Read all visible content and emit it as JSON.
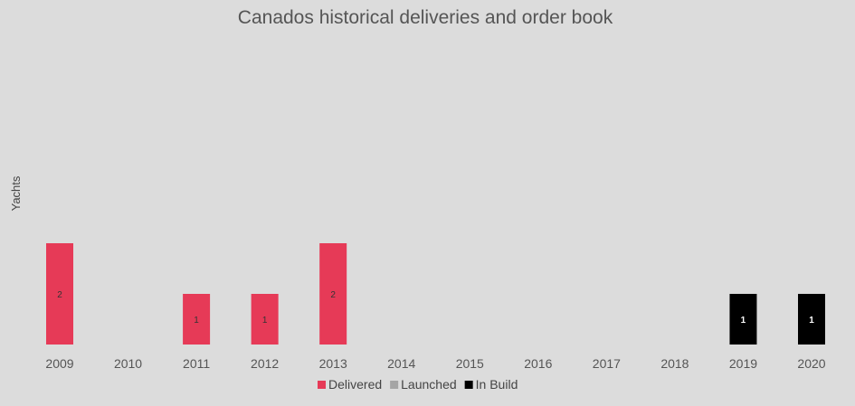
{
  "chart_data": {
    "type": "bar",
    "stacked": true,
    "title": "Canados historical deliveries and order book",
    "xlabel": "",
    "ylabel": "Yachts",
    "categories": [
      "2009",
      "2010",
      "2011",
      "2012",
      "2013",
      "2014",
      "2015",
      "2016",
      "2017",
      "2018",
      "2019",
      "2020"
    ],
    "series": [
      {
        "name": "Delivered",
        "color": "#e63a57",
        "label_color": "#333333",
        "values": [
          2,
          0,
          1,
          1,
          2,
          0,
          0,
          0,
          0,
          0,
          0,
          0
        ]
      },
      {
        "name": "Launched",
        "color": "#a5a5a5",
        "label_color": "#333333",
        "values": [
          0,
          0,
          0,
          0,
          0,
          0,
          0,
          0,
          0,
          0,
          0,
          0
        ]
      },
      {
        "name": "In Build",
        "color": "#000000",
        "label_color": "#ffffff",
        "values": [
          0,
          0,
          0,
          0,
          0,
          0,
          0,
          0,
          0,
          0,
          1,
          1
        ]
      }
    ],
    "ylim": [
      0,
      6
    ],
    "grid": false,
    "legend_position": "bottom"
  }
}
